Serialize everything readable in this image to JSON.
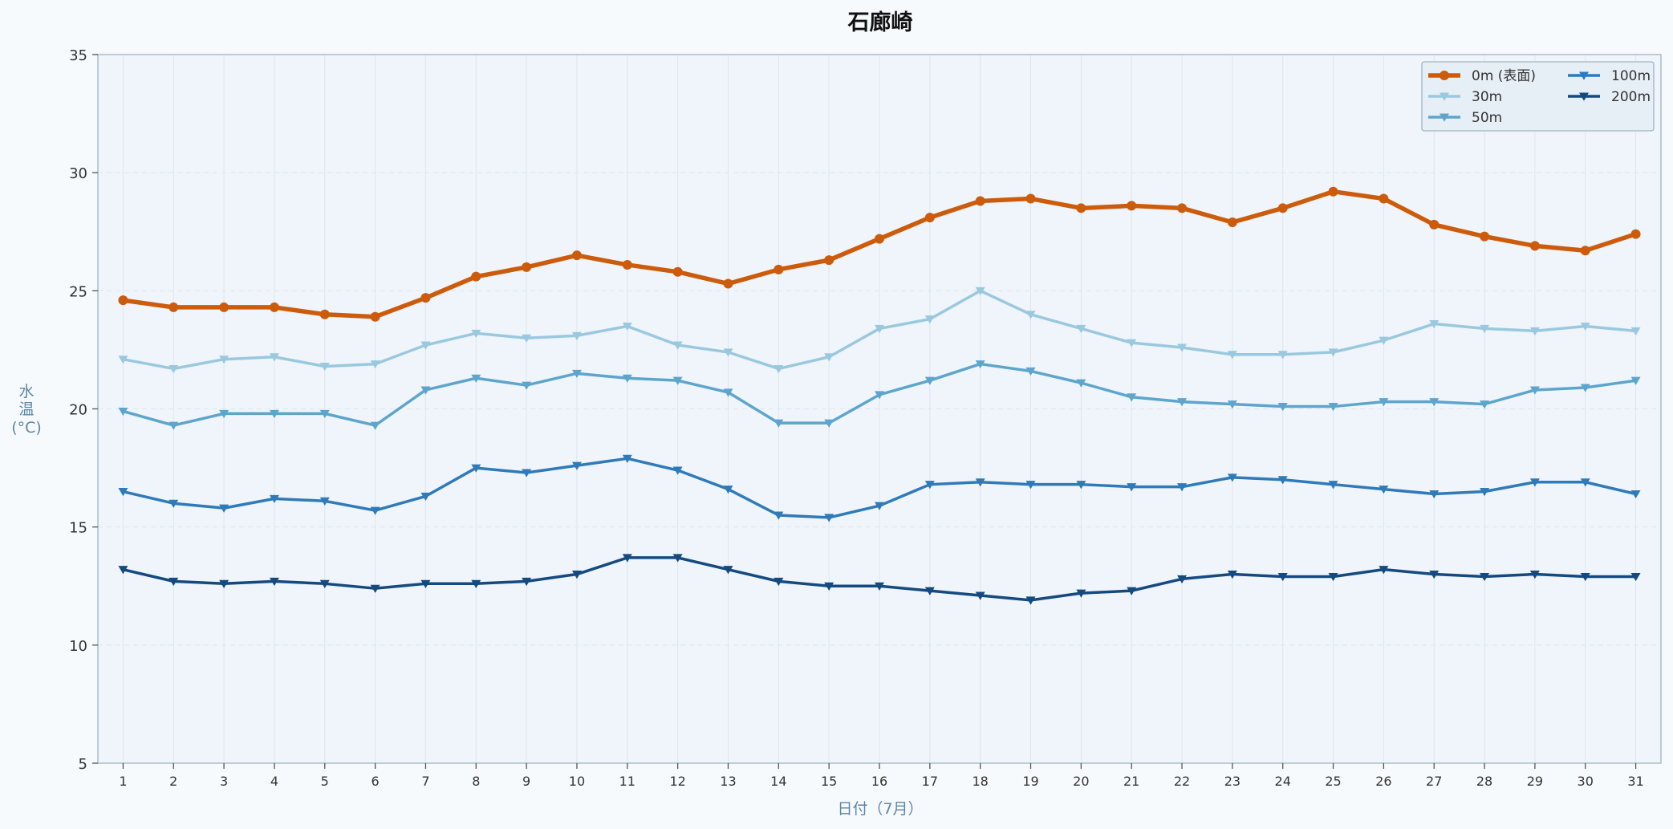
{
  "chart_data": {
    "type": "line",
    "title": "石廊崎",
    "xlabel": "日付（7月）",
    "ylabel": "水温(°C)",
    "ylabel_lines": [
      "水",
      "温",
      "(°C)"
    ],
    "x": [
      1,
      2,
      3,
      4,
      5,
      6,
      7,
      8,
      9,
      10,
      11,
      12,
      13,
      14,
      15,
      16,
      17,
      18,
      19,
      20,
      21,
      22,
      23,
      24,
      25,
      26,
      27,
      28,
      29,
      30,
      31
    ],
    "xlim": [
      0.5,
      31.5
    ],
    "ylim": [
      5,
      35
    ],
    "yticks": [
      5,
      10,
      15,
      20,
      25,
      30,
      35
    ],
    "grid": true,
    "legend_position": "top-right",
    "series": [
      {
        "name": "0m (表面)",
        "color": "#cc5c0c",
        "marker": "circle",
        "values": [
          24.6,
          24.3,
          24.3,
          24.3,
          24.0,
          23.9,
          24.7,
          25.6,
          26.0,
          26.5,
          26.1,
          25.8,
          25.3,
          25.9,
          26.3,
          27.2,
          28.1,
          28.8,
          28.9,
          28.5,
          28.6,
          28.5,
          27.9,
          28.5,
          29.2,
          28.9,
          27.8,
          27.3,
          26.9,
          26.7,
          27.4
        ]
      },
      {
        "name": "30m",
        "color": "#9ac8de",
        "marker": "triangle-down",
        "values": [
          22.1,
          21.7,
          22.1,
          22.2,
          21.8,
          21.9,
          22.7,
          23.2,
          23.0,
          23.1,
          23.5,
          22.7,
          22.4,
          21.7,
          22.2,
          23.4,
          23.8,
          25.0,
          24.0,
          23.4,
          22.8,
          22.6,
          22.3,
          22.3,
          22.4,
          22.9,
          23.6,
          23.4,
          23.3,
          23.5,
          23.3
        ]
      },
      {
        "name": "50m",
        "color": "#5da5cd",
        "marker": "triangle-down",
        "values": [
          19.9,
          19.3,
          19.8,
          19.8,
          19.8,
          19.3,
          20.8,
          21.3,
          21.0,
          21.5,
          21.3,
          21.2,
          20.7,
          19.4,
          19.4,
          20.6,
          21.2,
          21.9,
          21.6,
          21.1,
          20.5,
          20.3,
          20.2,
          20.1,
          20.1,
          20.3,
          20.3,
          20.2,
          20.8,
          20.9,
          21.2
        ]
      },
      {
        "name": "100m",
        "color": "#2f7ab9",
        "marker": "triangle-down",
        "values": [
          16.5,
          16.0,
          15.8,
          16.2,
          16.1,
          15.7,
          16.3,
          17.5,
          17.3,
          17.6,
          17.9,
          17.4,
          16.6,
          15.5,
          15.4,
          15.9,
          16.8,
          16.9,
          16.8,
          16.8,
          16.7,
          16.7,
          17.1,
          17.0,
          16.8,
          16.6,
          16.4,
          16.5,
          16.9,
          16.9,
          16.4
        ]
      },
      {
        "name": "200m",
        "color": "#154a80",
        "marker": "triangle-down",
        "values": [
          13.2,
          12.7,
          12.6,
          12.7,
          12.6,
          12.4,
          12.6,
          12.6,
          12.7,
          13.0,
          13.7,
          13.7,
          13.2,
          12.7,
          12.5,
          12.5,
          12.3,
          12.1,
          11.9,
          12.2,
          12.3,
          12.8,
          13.0,
          12.9,
          12.9,
          13.2,
          13.0,
          12.9,
          13.0,
          12.9,
          12.9
        ]
      }
    ]
  }
}
